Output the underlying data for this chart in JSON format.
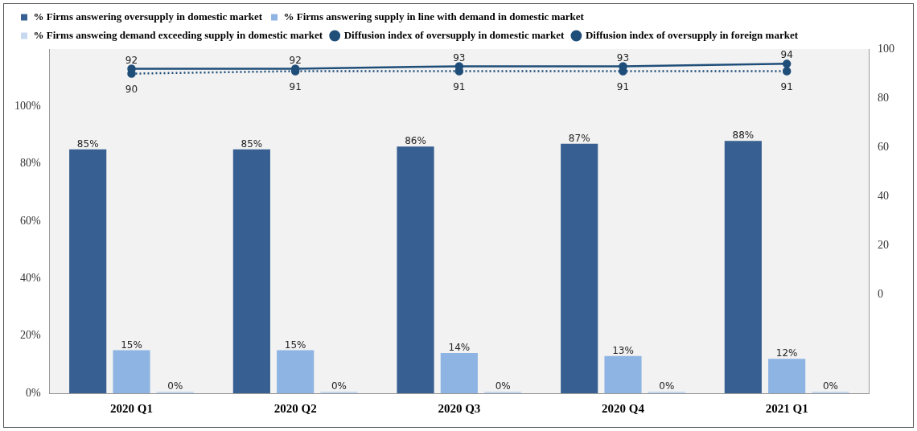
{
  "chart_data": {
    "type": "bar",
    "categories": [
      "2020 Q1",
      "2020 Q2",
      "2020 Q3",
      "2020 Q4",
      "2021 Q1"
    ],
    "series": [
      {
        "name": "% Firms answering oversupply in domestic market",
        "color": "#375f91",
        "values": [
          85,
          85,
          86,
          87,
          88
        ],
        "value_labels": [
          "85%",
          "85%",
          "86%",
          "87%",
          "88%"
        ]
      },
      {
        "name": "% Firms answering supply in line with demand in domestic market",
        "color": "#8eb4e3",
        "values": [
          15,
          15,
          14,
          13,
          12
        ],
        "value_labels": [
          "15%",
          "15%",
          "14%",
          "13%",
          "12%"
        ]
      },
      {
        "name": "% Firms answeing demand exceeding supply in domestic market",
        "color": "#c6d9f1",
        "values": [
          0,
          0,
          0,
          0,
          0
        ],
        "value_labels": [
          "0%",
          "0%",
          "0%",
          "0%",
          "0%"
        ]
      },
      {
        "name": "Diffusion index of oversupply in domestic market",
        "type": "line",
        "axis": "y2",
        "color": "#1f4e79",
        "marker": "circle",
        "line_style": "solid",
        "values": [
          92,
          92,
          93,
          93,
          94
        ],
        "value_labels": [
          "92",
          "92",
          "93",
          "93",
          "94"
        ]
      },
      {
        "name": "Diffusion index of oversupply in foreign market",
        "type": "line",
        "axis": "y2",
        "color": "#1f4e79",
        "marker": "circle",
        "line_style": "dotted",
        "values": [
          90,
          91,
          91,
          91,
          91
        ],
        "value_labels": [
          "90",
          "91",
          "91",
          "91",
          "91"
        ]
      }
    ],
    "ylim": [
      0,
      120
    ],
    "yticks": [
      {
        "value": 0,
        "label": "0%"
      },
      {
        "value": 20,
        "label": "20%"
      },
      {
        "value": 40,
        "label": "40%"
      },
      {
        "value": 60,
        "label": "60%"
      },
      {
        "value": 80,
        "label": "80%"
      },
      {
        "value": 100,
        "label": "100%"
      }
    ],
    "y2lim": [
      -40,
      100
    ],
    "y2ticks": [
      0,
      20,
      40,
      60,
      80,
      100
    ],
    "grid": false,
    "legend": "top"
  }
}
